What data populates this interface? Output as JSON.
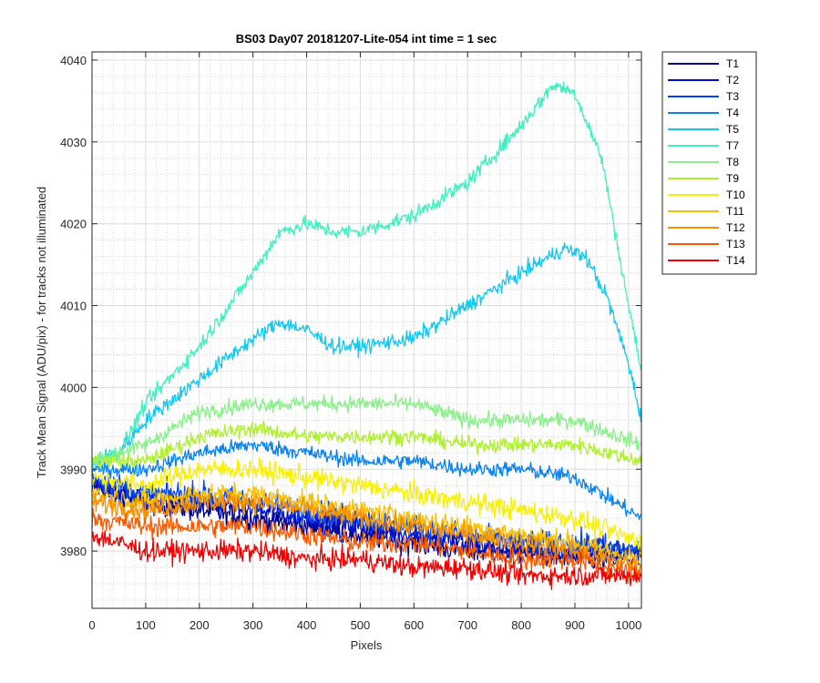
{
  "chart_data": {
    "type": "line",
    "title": "BS03 Day07 20181207-Lite-054 int time = 1 sec",
    "xlabel": "Pixels",
    "ylabel": "Track Mean Signal (ADU/pix) - for tracks not illuminated",
    "xlim": [
      0,
      1024
    ],
    "ylim": [
      3973,
      4041
    ],
    "x_ticks": [
      0,
      100,
      200,
      300,
      400,
      500,
      600,
      700,
      800,
      900,
      1000
    ],
    "y_ticks": [
      3980,
      3990,
      4000,
      4010,
      4020,
      4030,
      4040
    ],
    "grid": "major and minor",
    "legend_position": "outside-top-right",
    "series": [
      {
        "name": "T1",
        "color": "#00008b",
        "noise": 2.5,
        "points": [
          [
            0,
            3988
          ],
          [
            100,
            3986
          ],
          [
            200,
            3985
          ],
          [
            300,
            3984
          ],
          [
            400,
            3983
          ],
          [
            500,
            3982
          ],
          [
            600,
            3981
          ],
          [
            700,
            3980
          ],
          [
            800,
            3980
          ],
          [
            900,
            3979
          ],
          [
            1024,
            3979
          ]
        ]
      },
      {
        "name": "T2",
        "color": "#0010c8",
        "noise": 2.5,
        "points": [
          [
            0,
            3988
          ],
          [
            100,
            3986
          ],
          [
            200,
            3986
          ],
          [
            300,
            3985
          ],
          [
            400,
            3984
          ],
          [
            500,
            3983
          ],
          [
            600,
            3982
          ],
          [
            700,
            3981
          ],
          [
            800,
            3980
          ],
          [
            900,
            3980
          ],
          [
            1024,
            3980
          ]
        ]
      },
      {
        "name": "T3",
        "color": "#0044ee",
        "noise": 2.5,
        "points": [
          [
            0,
            3989
          ],
          [
            100,
            3987
          ],
          [
            200,
            3987
          ],
          [
            300,
            3986
          ],
          [
            400,
            3985
          ],
          [
            500,
            3984
          ],
          [
            600,
            3983
          ],
          [
            700,
            3982
          ],
          [
            800,
            3981
          ],
          [
            900,
            3981
          ],
          [
            1024,
            3980
          ]
        ]
      },
      {
        "name": "T4",
        "color": "#0a82f0",
        "noise": 1.6,
        "points": [
          [
            0,
            3990
          ],
          [
            100,
            3990
          ],
          [
            200,
            3992
          ],
          [
            300,
            3993
          ],
          [
            400,
            3992
          ],
          [
            500,
            3991
          ],
          [
            600,
            3991
          ],
          [
            700,
            3990
          ],
          [
            800,
            3990
          ],
          [
            900,
            3989
          ],
          [
            1024,
            3984
          ]
        ]
      },
      {
        "name": "T5",
        "color": "#10c8f0",
        "noise": 1.6,
        "points": [
          [
            0,
            3991
          ],
          [
            50,
            3992
          ],
          [
            100,
            3996
          ],
          [
            200,
            4001
          ],
          [
            280,
            4005
          ],
          [
            350,
            4008
          ],
          [
            400,
            4007
          ],
          [
            450,
            4005
          ],
          [
            500,
            4005
          ],
          [
            600,
            4006
          ],
          [
            700,
            4010
          ],
          [
            800,
            4014
          ],
          [
            880,
            4017
          ],
          [
            920,
            4016
          ],
          [
            960,
            4011
          ],
          [
            1000,
            4003
          ],
          [
            1024,
            3996
          ]
        ]
      },
      {
        "name": "T7",
        "color": "#40f0c0",
        "noise": 1.6,
        "points": [
          [
            0,
            3991
          ],
          [
            50,
            3992
          ],
          [
            100,
            3998
          ],
          [
            200,
            4005
          ],
          [
            300,
            4014
          ],
          [
            350,
            4019
          ],
          [
            400,
            4020
          ],
          [
            450,
            4019
          ],
          [
            500,
            4019
          ],
          [
            600,
            4021
          ],
          [
            700,
            4025
          ],
          [
            800,
            4032
          ],
          [
            860,
            4037
          ],
          [
            900,
            4036
          ],
          [
            950,
            4028
          ],
          [
            1000,
            4010
          ],
          [
            1024,
            4002
          ]
        ]
      },
      {
        "name": "T8",
        "color": "#8af08a",
        "noise": 1.6,
        "points": [
          [
            0,
            3991
          ],
          [
            100,
            3993
          ],
          [
            200,
            3997
          ],
          [
            300,
            3998
          ],
          [
            400,
            3998
          ],
          [
            500,
            3998
          ],
          [
            600,
            3998
          ],
          [
            700,
            3996
          ],
          [
            800,
            3996
          ],
          [
            900,
            3996
          ],
          [
            1024,
            3993
          ]
        ]
      },
      {
        "name": "T9",
        "color": "#b0f030",
        "noise": 1.6,
        "points": [
          [
            0,
            3991
          ],
          [
            100,
            3991
          ],
          [
            200,
            3994
          ],
          [
            300,
            3995
          ],
          [
            400,
            3994
          ],
          [
            500,
            3994
          ],
          [
            600,
            3994
          ],
          [
            700,
            3993
          ],
          [
            800,
            3993
          ],
          [
            900,
            3993
          ],
          [
            1024,
            3991
          ]
        ]
      },
      {
        "name": "T10",
        "color": "#f8f000",
        "noise": 2.2,
        "points": [
          [
            0,
            3989
          ],
          [
            100,
            3988
          ],
          [
            200,
            3990
          ],
          [
            300,
            3990
          ],
          [
            400,
            3989
          ],
          [
            500,
            3988
          ],
          [
            600,
            3987
          ],
          [
            700,
            3986
          ],
          [
            800,
            3985
          ],
          [
            900,
            3984
          ],
          [
            1024,
            3981
          ]
        ]
      },
      {
        "name": "T11",
        "color": "#f8c000",
        "noise": 2.2,
        "points": [
          [
            0,
            3987
          ],
          [
            100,
            3986
          ],
          [
            200,
            3987
          ],
          [
            300,
            3987
          ],
          [
            400,
            3986
          ],
          [
            500,
            3985
          ],
          [
            600,
            3984
          ],
          [
            700,
            3983
          ],
          [
            800,
            3982
          ],
          [
            900,
            3981
          ],
          [
            1024,
            3979
          ]
        ]
      },
      {
        "name": "T12",
        "color": "#f89000",
        "noise": 2.2,
        "points": [
          [
            0,
            3986
          ],
          [
            100,
            3985
          ],
          [
            200,
            3986
          ],
          [
            300,
            3986
          ],
          [
            400,
            3985
          ],
          [
            500,
            3984
          ],
          [
            600,
            3983
          ],
          [
            700,
            3982
          ],
          [
            800,
            3981
          ],
          [
            900,
            3980
          ],
          [
            1024,
            3978
          ]
        ]
      },
      {
        "name": "T13",
        "color": "#f85a00",
        "noise": 2.2,
        "points": [
          [
            0,
            3984
          ],
          [
            100,
            3983
          ],
          [
            200,
            3983
          ],
          [
            300,
            3983
          ],
          [
            400,
            3982
          ],
          [
            500,
            3981
          ],
          [
            600,
            3981
          ],
          [
            700,
            3980
          ],
          [
            800,
            3979
          ],
          [
            900,
            3979
          ],
          [
            1024,
            3977
          ]
        ]
      },
      {
        "name": "T14",
        "color": "#f00000",
        "noise": 2.2,
        "points": [
          [
            0,
            3982
          ],
          [
            100,
            3980
          ],
          [
            200,
            3980
          ],
          [
            300,
            3980
          ],
          [
            400,
            3979
          ],
          [
            500,
            3979
          ],
          [
            600,
            3978
          ],
          [
            700,
            3978
          ],
          [
            800,
            3977
          ],
          [
            900,
            3977
          ],
          [
            1024,
            3977
          ]
        ]
      }
    ]
  }
}
